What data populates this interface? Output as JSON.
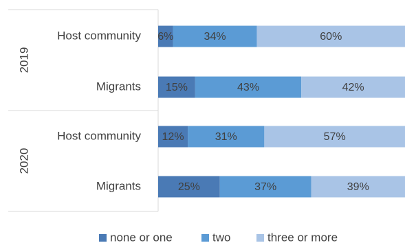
{
  "chart_data": {
    "type": "bar",
    "orientation": "horizontal",
    "stacked": "percent",
    "groups": [
      {
        "label": "2019",
        "rows": [
          {
            "label": "Host community",
            "values": [
              6,
              34,
              60
            ]
          },
          {
            "label": "Migrants",
            "values": [
              15,
              43,
              42
            ]
          }
        ]
      },
      {
        "label": "2020",
        "rows": [
          {
            "label": "Host community",
            "values": [
              12,
              31,
              57
            ]
          },
          {
            "label": "Migrants",
            "values": [
              25,
              37,
              39
            ]
          }
        ]
      }
    ],
    "series": [
      {
        "name": "none or one",
        "color": "#4a7ab5"
      },
      {
        "name": "two",
        "color": "#5b9bd5"
      },
      {
        "name": "three or more",
        "color": "#a9c4e6"
      }
    ],
    "value_suffix": "%",
    "xlim": [
      0,
      100
    ],
    "legend_position": "bottom",
    "grid": false
  }
}
